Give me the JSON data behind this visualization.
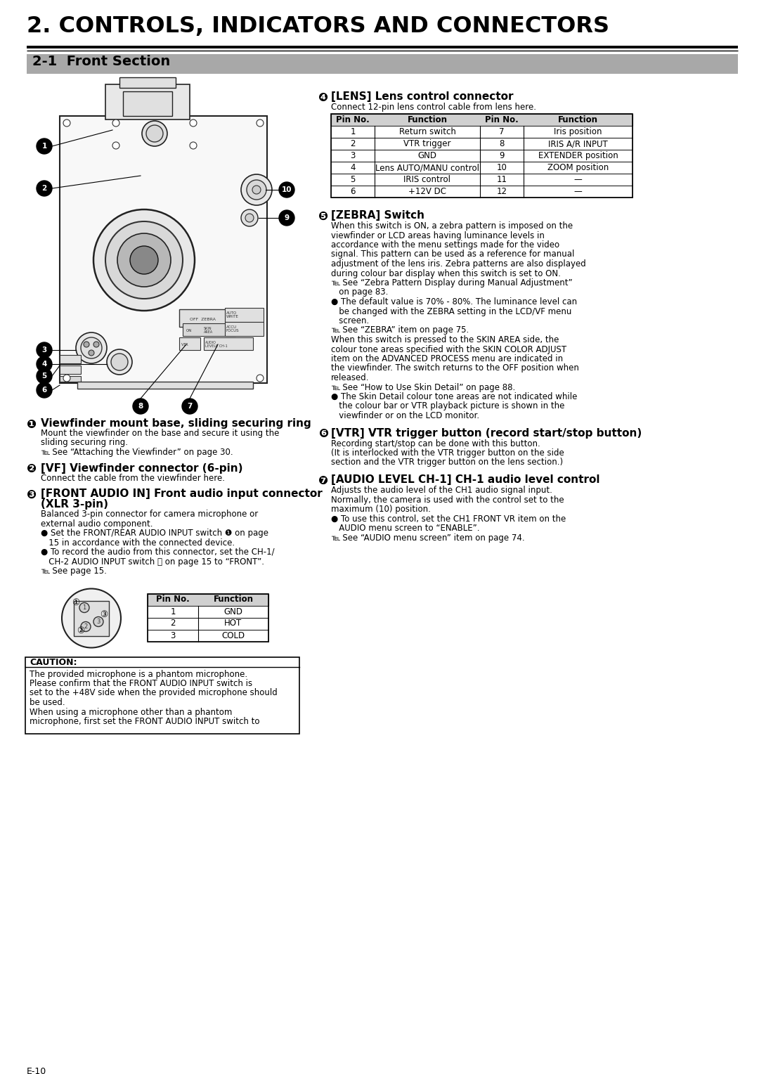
{
  "bg_color": "#ffffff",
  "title": "2. CONTROLS, INDICATORS AND CONNECTORS",
  "section_title": "2-1  Front Section",
  "section_bg": "#aaaaaa",
  "page_number": "E-10",
  "lens_table_header": [
    "Pin No.",
    "Function",
    "Pin No.",
    "Function"
  ],
  "lens_table_rows": [
    [
      "1",
      "Return switch",
      "7",
      "Iris position"
    ],
    [
      "2",
      "VTR trigger",
      "8",
      "IRIS A/R INPUT"
    ],
    [
      "3",
      "GND",
      "9",
      "EXTENDER position"
    ],
    [
      "4",
      "Lens AUTO/MANU control",
      "10",
      "ZOOM position"
    ],
    [
      "5",
      "IRIS control",
      "11",
      "—"
    ],
    [
      "6",
      "+12V DC",
      "12",
      "—"
    ]
  ],
  "xlr_table_header": [
    "Pin No.",
    "Function"
  ],
  "xlr_table_rows": [
    [
      "1",
      "GND"
    ],
    [
      "2",
      "HOT"
    ],
    [
      "3",
      "COLD"
    ]
  ],
  "caution_title": "CAUTION:",
  "caution_lines": [
    "The provided microphone is a phantom microphone.",
    "Please confirm that the FRONT AUDIO INPUT switch is",
    "set to the +48V side when the provided microphone should",
    "be used.",
    "When using a microphone other than a phantom",
    "microphone, first set the FRONT AUDIO INPUT switch to"
  ],
  "left_items": [
    {
      "sym": "❶",
      "bold": "Viewfinder mount base, sliding securing ring",
      "lines": [
        "Mount the viewfinder on the base and secure it using the",
        "sliding securing ring.",
        "℡ See “Attaching the Viewfinder” on page 30."
      ]
    },
    {
      "sym": "❷",
      "bold": "[VF] Viewfinder connector (6-pin)",
      "lines": [
        "Connect the cable from the viewfinder here."
      ]
    },
    {
      "sym": "❸",
      "bold": "[FRONT AUDIO IN] Front audio input connector",
      "bold2": "(XLR 3-pin)",
      "lines": [
        "Balanced 3-pin connector for camera microphone or",
        "external audio component.",
        "● Set the FRONT/REAR AUDIO INPUT switch ❶ on page",
        "   15 in accordance with the connected device.",
        "● To record the audio from this connector, set the CH-1/",
        "   CH-2 AUDIO INPUT switch ⓙ on page 15 to “FRONT”.",
        "℡ See page 15."
      ]
    }
  ],
  "right_items": [
    {
      "sym": "❹",
      "bold": "[LENS] Lens control connector",
      "lines": [
        "Connect 12-pin lens control cable from lens here."
      ]
    },
    {
      "sym": "❺",
      "bold": "[ZEBRA] Switch",
      "lines": [
        "When this switch is ON, a zebra pattern is imposed on the",
        "viewfinder or LCD areas having luminance levels in",
        "accordance with the menu settings made for the video",
        "signal. This pattern can be used as a reference for manual",
        "adjustment of the lens iris. Zebra patterns are also displayed",
        "during colour bar display when this switch is set to ON.",
        "℡ See “Zebra Pattern Display during Manual Adjustment”",
        "   on page 83.",
        "● The default value is 70% - 80%. The luminance level can",
        "   be changed with the ZEBRA setting in the LCD/VF menu",
        "   screen.",
        "℡ See “ZEBRA” item on page 75.",
        "When this switch is pressed to the SKIN AREA side, the",
        "colour tone areas specified with the SKIN COLOR ADJUST",
        "item on the ADVANCED PROCESS menu are indicated in",
        "the viewfinder. The switch returns to the OFF position when",
        "released.",
        "℡ See “How to Use Skin Detail” on page 88.",
        "● The Skin Detail colour tone areas are not indicated while",
        "   the colour bar or VTR playback picture is shown in the",
        "   viewfinder or on the LCD monitor."
      ]
    },
    {
      "sym": "❻",
      "bold": "[VTR] VTR trigger button (record start/stop button)",
      "lines": [
        "Recording start/stop can be done with this button.",
        "(It is interlocked with the VTR trigger button on the side",
        "section and the VTR trigger button on the lens section.)"
      ]
    },
    {
      "sym": "❼",
      "bold": "[AUDIO LEVEL CH-1] CH-1 audio level control",
      "lines": [
        "Adjusts the audio level of the CH1 audio signal input.",
        "Normally, the camera is used with the control set to the",
        "maximum (10) position.",
        "● To use this control, set the CH1 FRONT VR item on the",
        "   AUDIO menu screen to “ENABLE”.",
        "℡ See “AUDIO menu screen” item on page 74."
      ]
    }
  ]
}
